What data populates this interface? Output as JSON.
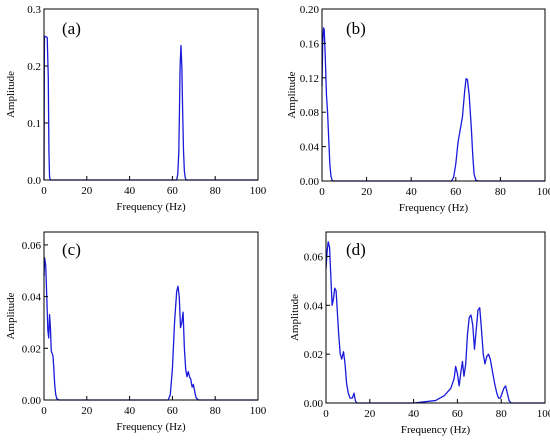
{
  "figure": {
    "panels": [
      "(a)",
      "(b)",
      "(c)",
      "(d)"
    ]
  },
  "chart_data": [
    {
      "type": "line",
      "panel_label": "(a)",
      "xlabel": "Frequency (Hz)",
      "ylabel": "Amplitude",
      "xlim": [
        0,
        100
      ],
      "ylim": [
        0,
        0.3
      ],
      "xticks": [
        "0",
        "20",
        "40",
        "60",
        "80",
        "100"
      ],
      "yticks": [
        "0.0",
        "0.1",
        "0.2",
        "0.3"
      ],
      "ytick_values": [
        0,
        0.1,
        0.2,
        0.3
      ],
      "grid": false,
      "color": "#1a1adb",
      "series": [
        {
          "x": [
            0,
            0.2,
            0.5,
            1,
            1.5,
            2,
            2.3,
            2.6,
            3,
            5,
            60,
            62,
            62.5,
            63,
            63.3,
            63.6,
            64,
            64.4,
            64.8,
            65.2,
            65.6,
            66,
            66.5,
            68,
            100
          ],
          "y": [
            0,
            0.25,
            0.252,
            0.251,
            0.25,
            0.18,
            0.05,
            0.005,
            0,
            0,
            0,
            0,
            0.01,
            0.05,
            0.12,
            0.2,
            0.236,
            0.2,
            0.12,
            0.05,
            0.015,
            0.004,
            0,
            0,
            0
          ]
        }
      ]
    },
    {
      "type": "line",
      "panel_label": "(b)",
      "xlabel": "Frequency (Hz)",
      "ylabel": "Amplitude",
      "xlim": [
        0,
        100
      ],
      "ylim": [
        0,
        0.2
      ],
      "xticks": [
        "0",
        "20",
        "40",
        "60",
        "80",
        "100"
      ],
      "yticks": [
        "0.00",
        "0.04",
        "0.08",
        "0.12",
        "0.16",
        "0.20"
      ],
      "ytick_values": [
        0,
        0.04,
        0.08,
        0.12,
        0.16,
        0.2
      ],
      "grid": false,
      "color": "#1a1adb",
      "series": [
        {
          "x": [
            0,
            0.3,
            0.7,
            1,
            1.4,
            2,
            2.5,
            3,
            3.5,
            4,
            4.5,
            5,
            6,
            58,
            59,
            60,
            61,
            62,
            63,
            64,
            64.6,
            65.2,
            66,
            67,
            67.6,
            68.2,
            69,
            70,
            100
          ],
          "y": [
            0.11,
            0.16,
            0.178,
            0.176,
            0.15,
            0.1,
            0.08,
            0.05,
            0.02,
            0.006,
            0.001,
            0,
            0,
            0,
            0.004,
            0.02,
            0.045,
            0.06,
            0.075,
            0.105,
            0.119,
            0.118,
            0.1,
            0.06,
            0.03,
            0.008,
            0.001,
            0,
            0
          ]
        }
      ]
    },
    {
      "type": "line",
      "panel_label": "(c)",
      "xlabel": "Frequency (Hz)",
      "ylabel": "Amplitude",
      "xlim": [
        0,
        100
      ],
      "ylim": [
        0,
        0.065
      ],
      "xticks": [
        "0",
        "20",
        "40",
        "60",
        "80",
        "100"
      ],
      "yticks": [
        "0.00",
        "0.02",
        "0.04",
        "0.06"
      ],
      "ytick_values": [
        0,
        0.02,
        0.04,
        0.06
      ],
      "grid": false,
      "color": "#1a1adb",
      "series": [
        {
          "x": [
            0,
            0.3,
            0.8,
            1.3,
            1.8,
            2.2,
            2.6,
            3,
            3.4,
            3.8,
            4.2,
            4.6,
            5,
            5.5,
            6,
            7,
            58,
            59,
            60,
            61,
            62,
            62.6,
            63.2,
            63.8,
            64.4,
            65,
            65.6,
            66.2,
            66.8,
            67.4,
            68,
            68.6,
            69.2,
            69.8,
            70.5,
            71,
            71.5,
            72.2,
            100
          ],
          "y": [
            0.048,
            0.055,
            0.052,
            0.04,
            0.027,
            0.024,
            0.033,
            0.028,
            0.019,
            0.018,
            0.017,
            0.012,
            0.006,
            0.002,
            0.0005,
            0,
            0,
            0.002,
            0.012,
            0.03,
            0.042,
            0.044,
            0.04,
            0.028,
            0.03,
            0.034,
            0.02,
            0.012,
            0.009,
            0.011,
            0.009,
            0.008,
            0.005,
            0.006,
            0.003,
            0.001,
            0.0005,
            0,
            0
          ]
        }
      ]
    },
    {
      "type": "line",
      "panel_label": "(d)",
      "xlabel": "Frequency (Hz)",
      "ylabel": "Amplitude",
      "xlim": [
        0,
        100
      ],
      "ylim": [
        0,
        0.07
      ],
      "xticks": [
        "0",
        "20",
        "40",
        "60",
        "80",
        "100"
      ],
      "yticks": [
        "0.00",
        "0.02",
        "0.04",
        "0.06"
      ],
      "ytick_values": [
        0,
        0.02,
        0.04,
        0.06
      ],
      "grid": false,
      "color": "#1a1adb",
      "series": [
        {
          "x": [
            0,
            0.5,
            1,
            1.6,
            2.2,
            2.8,
            3.3,
            4,
            4.6,
            5.2,
            5.8,
            6.5,
            7.2,
            8,
            8.7,
            9.4,
            10.2,
            11,
            12,
            12.8,
            13.4,
            14,
            15,
            16,
            40,
            50,
            54,
            57,
            58.5,
            59.2,
            60,
            60.8,
            61.5,
            62.3,
            63,
            63.8,
            64.6,
            65.4,
            66.2,
            67,
            67.8,
            68.6,
            69.4,
            70.2,
            71,
            71.8,
            72.6,
            73.4,
            74.2,
            75,
            76,
            77,
            78,
            78.8,
            79.6,
            80.4,
            81.2,
            82,
            82.8,
            83.6,
            84.5,
            100
          ],
          "y": [
            0.055,
            0.062,
            0.066,
            0.064,
            0.052,
            0.04,
            0.042,
            0.047,
            0.046,
            0.037,
            0.028,
            0.02,
            0.018,
            0.021,
            0.016,
            0.008,
            0.004,
            0.002,
            0.002,
            0.004,
            0.001,
            0,
            0,
            0,
            0,
            0.001,
            0.003,
            0.006,
            0.01,
            0.015,
            0.012,
            0.007,
            0.012,
            0.017,
            0.011,
            0.016,
            0.028,
            0.035,
            0.036,
            0.032,
            0.022,
            0.03,
            0.038,
            0.039,
            0.03,
            0.02,
            0.016,
            0.019,
            0.02,
            0.018,
            0.013,
            0.008,
            0.004,
            0.002,
            0.002,
            0.004,
            0.006,
            0.007,
            0.004,
            0.001,
            0,
            0
          ]
        }
      ]
    }
  ]
}
